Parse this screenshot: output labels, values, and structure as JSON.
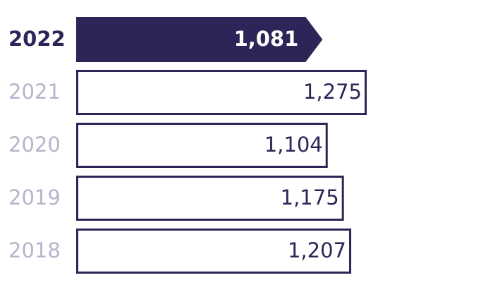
{
  "chart_data": {
    "type": "bar",
    "orientation": "horizontal",
    "categories": [
      "2022",
      "2021",
      "2020",
      "2019",
      "2018"
    ],
    "values": [
      1081,
      1275,
      1104,
      1175,
      1207
    ],
    "value_labels": [
      "1,081",
      "1,275",
      "1,104",
      "1,175",
      "1,207"
    ],
    "color": "#2b2657",
    "fill_colors": [
      "#2b2657",
      "#ffffff",
      "#ffffff",
      "#ffffff",
      "#ffffff"
    ],
    "label_colors": [
      "#2b2657",
      "#b9b3cc",
      "#b9b3cc",
      "#b9b3cc",
      "#b9b3cc"
    ],
    "value_label_colors": [
      "#ffffff",
      "#2b2657",
      "#2b2657",
      "#2b2657",
      "#2b2657"
    ]
  }
}
